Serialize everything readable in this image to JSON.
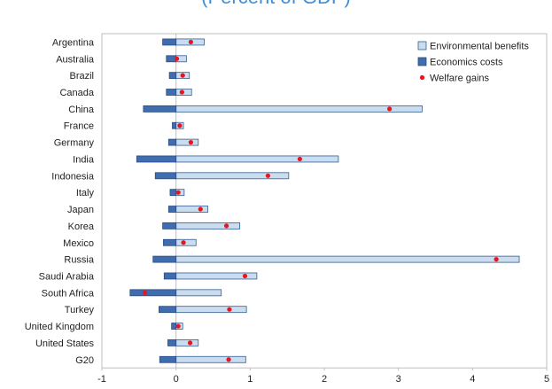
{
  "chart_data": {
    "type": "bar",
    "orientation": "horizontal",
    "title": "(Percent of GDP)",
    "categories": [
      "Argentina",
      "Australia",
      "Brazil",
      "Canada",
      "China",
      "France",
      "Germany",
      "India",
      "Indonesia",
      "Italy",
      "Japan",
      "Korea",
      "Mexico",
      "Russia",
      "Saudi Arabia",
      "South Africa",
      "Turkey",
      "United Kingdom",
      "United States",
      "G20"
    ],
    "series": [
      {
        "name": "Environmental benefits",
        "type": "bar",
        "color": "#c9dcf0",
        "edge_color": "#355f91",
        "values": [
          0.38,
          0.14,
          0.18,
          0.21,
          3.32,
          0.1,
          0.3,
          2.19,
          1.52,
          0.11,
          0.43,
          0.86,
          0.27,
          4.63,
          1.09,
          0.61,
          0.95,
          0.09,
          0.3,
          0.94
        ]
      },
      {
        "name": "Economics costs",
        "type": "bar",
        "color": "#3f6db0",
        "edge_color": "#2a4c80",
        "values": [
          -0.18,
          -0.13,
          -0.09,
          -0.13,
          -0.44,
          -0.05,
          -0.1,
          -0.53,
          -0.28,
          -0.08,
          -0.1,
          -0.18,
          -0.17,
          -0.31,
          -0.16,
          -0.62,
          -0.23,
          -0.06,
          -0.11,
          -0.22
        ]
      },
      {
        "name": "Welfare gains",
        "type": "scatter",
        "color": "#e8151b",
        "values": [
          0.2,
          0.01,
          0.09,
          0.08,
          2.88,
          0.05,
          0.2,
          1.67,
          1.24,
          0.03,
          0.33,
          0.68,
          0.1,
          4.32,
          0.93,
          -0.42,
          0.72,
          0.03,
          0.19,
          0.71
        ]
      }
    ],
    "xlim": [
      -1,
      5
    ],
    "x_ticks": [
      "-1",
      "0",
      "1",
      "2",
      "3",
      "4",
      "5"
    ],
    "legend": {
      "placement": "top-right",
      "entries": [
        "Environmental benefits",
        "Economics costs",
        "Welfare gains"
      ]
    },
    "grid": false
  }
}
